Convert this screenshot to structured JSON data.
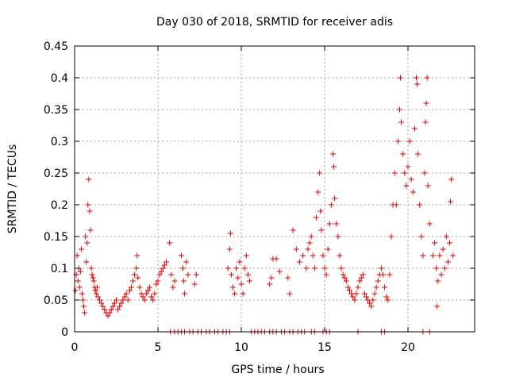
{
  "chart_data": {
    "type": "scatter",
    "title": "Day 030 of 2018, SRMTID for receiver adis",
    "xlabel": "GPS time / hours",
    "ylabel": "SRMTID / TECUs",
    "xlim": [
      0,
      24
    ],
    "ylim": [
      0,
      0.45
    ],
    "xticks": [
      0,
      5,
      10,
      15,
      20
    ],
    "yticks": [
      0,
      0.05,
      0.1,
      0.15,
      0.2,
      0.25,
      0.3,
      0.35,
      0.4,
      0.45
    ],
    "xtick_labels": [
      "0",
      "5",
      "10",
      "15",
      "20"
    ],
    "ytick_labels": [
      "0",
      "0.05",
      "0.1",
      "0.15",
      "0.2",
      "0.25",
      "0.3",
      "0.35",
      "0.4",
      "0.45"
    ],
    "grid": true,
    "marker": "+",
    "series": [
      {
        "name": "SRMTID",
        "color": "#e00000",
        "points": [
          [
            0.05,
            0.065
          ],
          [
            0.1,
            0.09
          ],
          [
            0.15,
            0.12
          ],
          [
            0.2,
            0.08
          ],
          [
            0.25,
            0.1
          ],
          [
            0.3,
            0.07
          ],
          [
            0.35,
            0.095
          ],
          [
            0.4,
            0.13
          ],
          [
            0.45,
            0.06
          ],
          [
            0.5,
            0.05
          ],
          [
            0.55,
            0.04
          ],
          [
            0.6,
            0.03
          ],
          [
            0.65,
            0.15
          ],
          [
            0.7,
            0.11
          ],
          [
            0.75,
            0.14
          ],
          [
            0.8,
            0.2
          ],
          [
            0.85,
            0.24
          ],
          [
            0.9,
            0.19
          ],
          [
            0.95,
            0.16
          ],
          [
            1.0,
            0.1
          ],
          [
            1.05,
            0.09
          ],
          [
            1.1,
            0.085
          ],
          [
            1.15,
            0.08
          ],
          [
            1.2,
            0.07
          ],
          [
            1.25,
            0.065
          ],
          [
            1.3,
            0.06
          ],
          [
            1.35,
            0.07
          ],
          [
            1.4,
            0.055
          ],
          [
            1.5,
            0.05
          ],
          [
            1.6,
            0.045
          ],
          [
            1.7,
            0.04
          ],
          [
            1.8,
            0.035
          ],
          [
            1.9,
            0.03
          ],
          [
            2.0,
            0.025
          ],
          [
            2.1,
            0.03
          ],
          [
            2.2,
            0.035
          ],
          [
            2.3,
            0.04
          ],
          [
            2.4,
            0.045
          ],
          [
            2.5,
            0.05
          ],
          [
            2.6,
            0.035
          ],
          [
            2.7,
            0.04
          ],
          [
            2.8,
            0.045
          ],
          [
            2.9,
            0.05
          ],
          [
            3.0,
            0.055
          ],
          [
            3.1,
            0.06
          ],
          [
            3.2,
            0.05
          ],
          [
            3.3,
            0.065
          ],
          [
            3.4,
            0.07
          ],
          [
            3.5,
            0.08
          ],
          [
            3.6,
            0.09
          ],
          [
            3.7,
            0.1
          ],
          [
            3.75,
            0.12
          ],
          [
            3.8,
            0.085
          ],
          [
            3.9,
            0.07
          ],
          [
            4.0,
            0.06
          ],
          [
            4.1,
            0.055
          ],
          [
            4.2,
            0.05
          ],
          [
            4.3,
            0.06
          ],
          [
            4.4,
            0.065
          ],
          [
            4.5,
            0.07
          ],
          [
            4.6,
            0.055
          ],
          [
            4.7,
            0.05
          ],
          [
            4.8,
            0.06
          ],
          [
            4.9,
            0.075
          ],
          [
            5.0,
            0.08
          ],
          [
            5.1,
            0.09
          ],
          [
            5.2,
            0.095
          ],
          [
            5.3,
            0.1
          ],
          [
            5.4,
            0.105
          ],
          [
            5.5,
            0.11
          ],
          [
            5.7,
            0.14
          ],
          [
            5.8,
            0.09
          ],
          [
            5.9,
            0.07
          ],
          [
            6.0,
            0.08
          ],
          [
            6.4,
            0.12
          ],
          [
            6.5,
            0.1
          ],
          [
            6.55,
            0.08
          ],
          [
            6.6,
            0.06
          ],
          [
            6.7,
            0.11
          ],
          [
            6.8,
            0.09
          ],
          [
            7.2,
            0.075
          ],
          [
            7.3,
            0.09
          ],
          [
            9.2,
            0.1
          ],
          [
            9.3,
            0.13
          ],
          [
            9.35,
            0.155
          ],
          [
            9.4,
            0.09
          ],
          [
            9.5,
            0.07
          ],
          [
            9.6,
            0.06
          ],
          [
            9.7,
            0.1
          ],
          [
            9.8,
            0.085
          ],
          [
            9.9,
            0.11
          ],
          [
            10.0,
            0.075
          ],
          [
            10.1,
            0.06
          ],
          [
            10.2,
            0.1
          ],
          [
            10.3,
            0.12
          ],
          [
            10.4,
            0.09
          ],
          [
            10.5,
            0.08
          ],
          [
            11.9,
            0.115
          ],
          [
            12.1,
            0.115
          ],
          [
            11.7,
            0.075
          ],
          [
            11.8,
            0.085
          ],
          [
            12.3,
            0.095
          ],
          [
            12.8,
            0.085
          ],
          [
            12.9,
            0.06
          ],
          [
            13.1,
            0.16
          ],
          [
            13.3,
            0.13
          ],
          [
            13.5,
            0.11
          ],
          [
            13.7,
            0.12
          ],
          [
            13.9,
            0.1
          ],
          [
            14.0,
            0.13
          ],
          [
            14.1,
            0.14
          ],
          [
            14.2,
            0.15
          ],
          [
            14.3,
            0.12
          ],
          [
            14.4,
            0.1
          ],
          [
            14.5,
            0.18
          ],
          [
            14.6,
            0.22
          ],
          [
            14.7,
            0.25
          ],
          [
            14.75,
            0.19
          ],
          [
            14.8,
            0.16
          ],
          [
            14.9,
            0.12
          ],
          [
            15.0,
            0.1
          ],
          [
            15.1,
            0.09
          ],
          [
            15.2,
            0.13
          ],
          [
            15.3,
            0.17
          ],
          [
            15.4,
            0.2
          ],
          [
            15.5,
            0.28
          ],
          [
            15.55,
            0.26
          ],
          [
            15.6,
            0.21
          ],
          [
            15.7,
            0.17
          ],
          [
            15.8,
            0.15
          ],
          [
            15.9,
            0.12
          ],
          [
            16.0,
            0.1
          ],
          [
            16.1,
            0.09
          ],
          [
            16.2,
            0.085
          ],
          [
            16.3,
            0.08
          ],
          [
            16.4,
            0.07
          ],
          [
            16.5,
            0.065
          ],
          [
            16.6,
            0.06
          ],
          [
            16.7,
            0.055
          ],
          [
            16.8,
            0.05
          ],
          [
            16.9,
            0.06
          ],
          [
            17.0,
            0.07
          ],
          [
            17.1,
            0.08
          ],
          [
            17.2,
            0.085
          ],
          [
            17.3,
            0.09
          ],
          [
            17.4,
            0.06
          ],
          [
            17.5,
            0.055
          ],
          [
            17.6,
            0.05
          ],
          [
            17.7,
            0.045
          ],
          [
            17.8,
            0.04
          ],
          [
            17.9,
            0.05
          ],
          [
            18.0,
            0.06
          ],
          [
            18.1,
            0.07
          ],
          [
            18.2,
            0.08
          ],
          [
            18.3,
            0.09
          ],
          [
            18.4,
            0.1
          ],
          [
            18.5,
            0.09
          ],
          [
            18.6,
            0.07
          ],
          [
            18.7,
            0.055
          ],
          [
            18.8,
            0.05
          ],
          [
            18.9,
            0.09
          ],
          [
            19.0,
            0.15
          ],
          [
            19.1,
            0.2
          ],
          [
            19.2,
            0.25
          ],
          [
            19.3,
            0.2
          ],
          [
            19.4,
            0.3
          ],
          [
            19.5,
            0.35
          ],
          [
            19.55,
            0.4
          ],
          [
            19.6,
            0.33
          ],
          [
            19.7,
            0.28
          ],
          [
            19.8,
            0.25
          ],
          [
            19.9,
            0.23
          ],
          [
            20.0,
            0.26
          ],
          [
            20.1,
            0.3
          ],
          [
            20.2,
            0.24
          ],
          [
            20.3,
            0.22
          ],
          [
            20.4,
            0.32
          ],
          [
            20.5,
            0.4
          ],
          [
            20.55,
            0.39
          ],
          [
            20.6,
            0.28
          ],
          [
            20.7,
            0.2
          ],
          [
            20.8,
            0.15
          ],
          [
            20.9,
            0.12
          ],
          [
            21.0,
            0.25
          ],
          [
            21.05,
            0.33
          ],
          [
            21.1,
            0.36
          ],
          [
            21.15,
            0.4
          ],
          [
            21.2,
            0.23
          ],
          [
            21.3,
            0.17
          ],
          [
            21.5,
            0.12
          ],
          [
            21.6,
            0.14
          ],
          [
            21.7,
            0.1
          ],
          [
            21.8,
            0.08
          ],
          [
            21.9,
            0.12
          ],
          [
            22.0,
            0.09
          ],
          [
            22.1,
            0.13
          ],
          [
            22.2,
            0.1
          ],
          [
            22.3,
            0.15
          ],
          [
            22.4,
            0.11
          ],
          [
            22.5,
            0.14
          ],
          [
            22.55,
            0.205
          ],
          [
            22.6,
            0.24
          ],
          [
            22.7,
            0.12
          ],
          [
            21.75,
            0.04
          ],
          [
            5.75,
            0.0
          ],
          [
            6.0,
            0.0
          ],
          [
            6.2,
            0.0
          ],
          [
            6.4,
            0.0
          ],
          [
            6.6,
            0.0
          ],
          [
            6.9,
            0.0
          ],
          [
            7.1,
            0.0
          ],
          [
            7.4,
            0.0
          ],
          [
            7.6,
            0.0
          ],
          [
            7.9,
            0.0
          ],
          [
            8.1,
            0.0
          ],
          [
            8.4,
            0.0
          ],
          [
            8.6,
            0.0
          ],
          [
            8.9,
            0.0
          ],
          [
            9.1,
            0.0
          ],
          [
            9.3,
            0.0
          ],
          [
            10.6,
            0.0
          ],
          [
            10.8,
            0.0
          ],
          [
            11.0,
            0.0
          ],
          [
            11.2,
            0.0
          ],
          [
            11.4,
            0.0
          ],
          [
            11.7,
            0.0
          ],
          [
            11.9,
            0.0
          ],
          [
            12.1,
            0.0
          ],
          [
            12.4,
            0.0
          ],
          [
            12.6,
            0.0
          ],
          [
            12.9,
            0.0
          ],
          [
            13.1,
            0.0
          ],
          [
            13.4,
            0.0
          ],
          [
            13.6,
            0.0
          ],
          [
            13.8,
            0.0
          ],
          [
            14.2,
            0.0
          ],
          [
            14.4,
            0.0
          ],
          [
            14.9,
            0.0
          ],
          [
            15.1,
            0.0
          ],
          [
            15.3,
            0.0
          ],
          [
            17.0,
            0.0
          ],
          [
            18.4,
            0.0
          ],
          [
            18.6,
            0.0
          ],
          [
            20.9,
            0.0
          ],
          [
            21.3,
            0.0
          ]
        ]
      }
    ]
  }
}
